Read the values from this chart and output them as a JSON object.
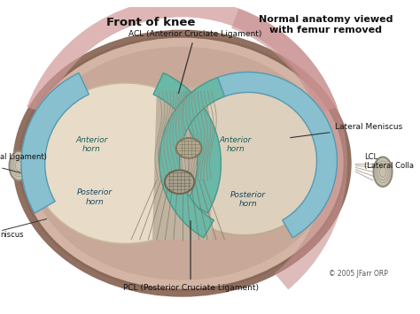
{
  "bg_color": "#f0ece8",
  "title_left": "Front of knee",
  "title_right": "Normal anatomy viewed\nwith femur removed",
  "copyright": "© 2005 JFarr ORP",
  "colors": {
    "outer_rim_dark": "#8a6858",
    "outer_rim": "#c09888",
    "outer_body": "#d4b4a4",
    "outer_inner": "#c8a898",
    "knee_inner_bg": "#c0a090",
    "condyle_left": "#e8dcc8",
    "condyle_right": "#ddd0bc",
    "meniscus_teal": "#6ab8a8",
    "meniscus_blue": "#88c0d0",
    "lig_gray": "#a09888",
    "lig_line": "#807868",
    "bone_cross": "#b0a898",
    "bone_side": "#c0b8a8",
    "pink_rim": "#d4a0a0",
    "text_dark": "#111111",
    "arrow_color": "#333333",
    "white": "#ffffff"
  }
}
